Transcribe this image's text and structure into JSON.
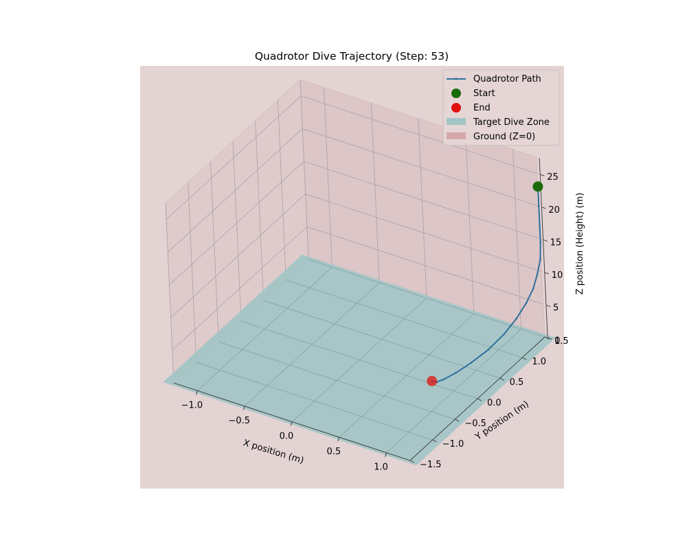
{
  "chart_data": {
    "type": "line-3d",
    "title": "Quadrotor Dive Trajectory (Step: 53)",
    "xlabel": "X position (m)",
    "ylabel": "Y position (m)",
    "zlabel": "Z position (Height) (m)",
    "xlim": [
      -1.25,
      1.25
    ],
    "ylim": [
      -1.5,
      1.5
    ],
    "zlim": [
      0,
      27.5
    ],
    "x_ticks": [
      "−1.0",
      "−0.5",
      "0.0",
      "0.5",
      "1.0"
    ],
    "y_ticks": [
      "−1.5",
      "−1.0",
      "−0.5",
      "0.0",
      "0.5",
      "1.0",
      "1.5"
    ],
    "z_ticks": [
      "0",
      "5",
      "10",
      "15",
      "20",
      "25"
    ],
    "grid": true,
    "legend_position": "top-right",
    "series": [
      {
        "name": "Quadrotor Path",
        "type": "line",
        "color": "#2e6f9e",
        "points": [
          [
            1.25,
            1.5,
            23.0
          ],
          [
            1.25,
            1.5,
            20.0
          ],
          [
            1.25,
            1.5,
            17.0
          ],
          [
            1.25,
            1.5,
            14.5
          ],
          [
            1.25,
            1.48,
            12.0
          ],
          [
            1.24,
            1.42,
            10.0
          ],
          [
            1.23,
            1.34,
            8.3
          ],
          [
            1.21,
            1.22,
            6.8
          ],
          [
            1.18,
            1.05,
            5.3
          ],
          [
            1.14,
            0.85,
            4.0
          ],
          [
            1.08,
            0.62,
            2.8
          ],
          [
            1.0,
            0.4,
            1.8
          ],
          [
            0.92,
            0.22,
            1.0
          ],
          [
            0.85,
            0.1,
            0.45
          ],
          [
            0.8,
            0.04,
            0.15
          ],
          [
            0.76,
            0.02,
            0.25
          ]
        ]
      },
      {
        "name": "Start",
        "type": "marker",
        "color": "#1a6b0c",
        "point": [
          1.25,
          1.5,
          23.0
        ]
      },
      {
        "name": "End",
        "type": "marker",
        "color": "#e01010",
        "point": [
          0.76,
          0.02,
          0.25
        ]
      },
      {
        "name": "Target Dive Zone",
        "type": "plane",
        "color": "#a3c4c5",
        "z": 0
      },
      {
        "name": "Ground (Z=0)",
        "type": "plane",
        "color": "#d8a9a8",
        "z": 0
      }
    ]
  },
  "colors": {
    "axes_background": "#e4d3d3",
    "pane": "#dcc6c7",
    "target_zone": "#a3c4c5",
    "path": "#2e6f9e",
    "grid": "#a9a2a2"
  }
}
